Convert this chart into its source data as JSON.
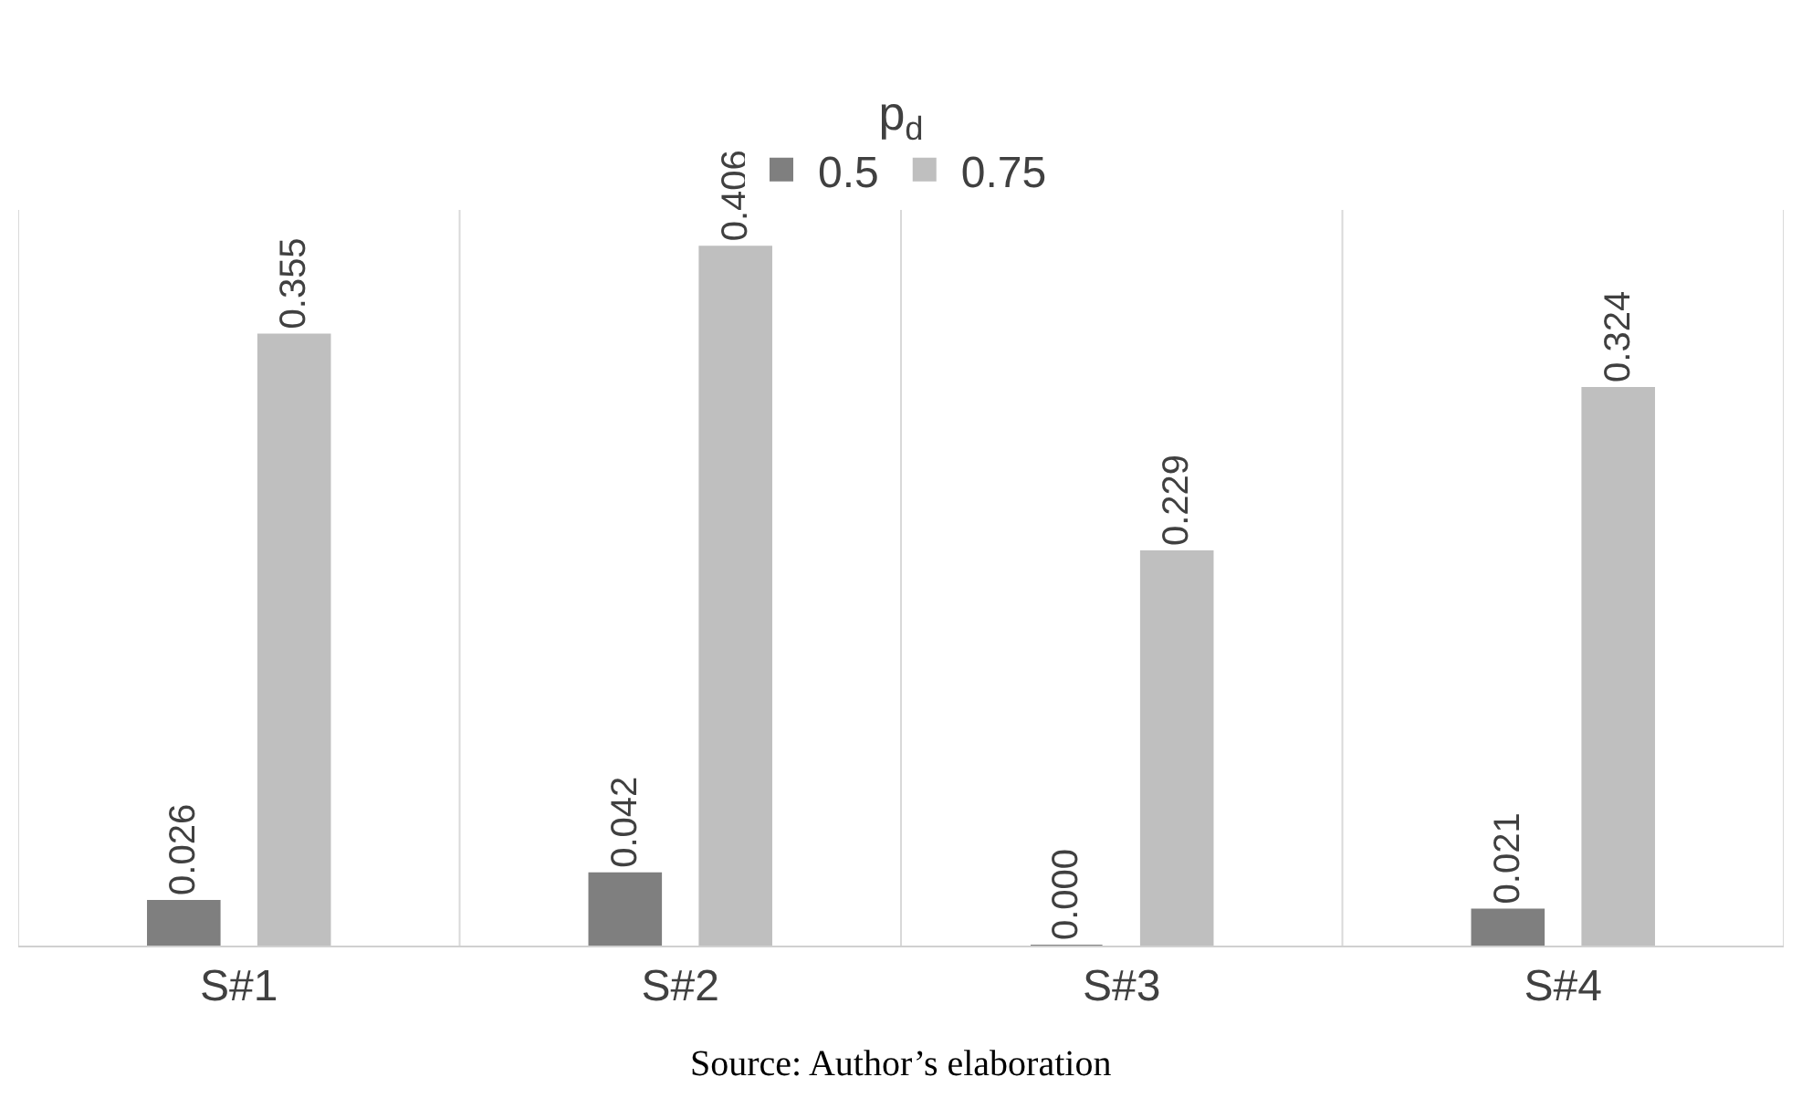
{
  "chart_data": {
    "type": "bar",
    "legend_title": "p$_{d}$",
    "categories": [
      "S#1",
      "S#2",
      "S#3",
      "S#4"
    ],
    "series": [
      {
        "name": "0.5",
        "color": "#7f7f7f",
        "values": [
          0.026,
          0.042,
          0,
          0.021
        ],
        "value_labels": [
          "0.026",
          "0.042",
          "0.000",
          "0.021"
        ]
      },
      {
        "name": "0.75",
        "color": "#bfbfbf",
        "values": [
          0.355,
          0.406,
          0.229,
          0.324
        ],
        "value_labels": [
          "0.355",
          "0.406",
          "0.229",
          "0.324"
        ]
      }
    ],
    "annotations": [
      "Source: Author’s elaboration"
    ],
    "grid": "x",
    "legend": "top",
    "tick_labels": "x"
  }
}
